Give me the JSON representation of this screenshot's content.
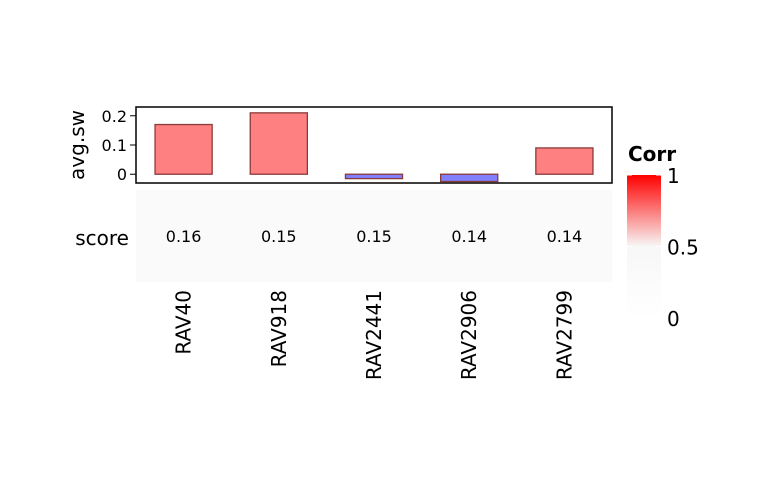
{
  "chart_data": {
    "type": "bar",
    "categories": [
      "RAV40",
      "RAV918",
      "RAV2441",
      "RAV2906",
      "RAV2799"
    ],
    "top_annotation": {
      "ylabel": "avg.sw",
      "ylim": [
        -0.03,
        0.23
      ],
      "yticks": [
        0,
        0.1,
        0.2
      ],
      "ytick_labels": [
        "0",
        "0.1",
        "0.2"
      ],
      "values": [
        0.17,
        0.21,
        -0.015,
        -0.025,
        0.09
      ],
      "positive_color": "#FF8080",
      "negative_color": "#7F7FFF",
      "bar_border_color": "#8B3A3A"
    },
    "heatmap_row": {
      "label": "score",
      "values": [
        0.16,
        0.15,
        0.15,
        0.14,
        0.14
      ],
      "value_labels": [
        "0.16",
        "0.15",
        "0.15",
        "0.14",
        "0.14"
      ]
    },
    "legend": {
      "title": "Corr",
      "range": [
        0,
        1
      ],
      "ticks": [
        0,
        0.5,
        1
      ],
      "tick_labels": [
        "0",
        "0.5",
        "1"
      ],
      "colors": [
        "#FFFFFF",
        "#F7F7F7",
        "#FF0000"
      ]
    }
  }
}
